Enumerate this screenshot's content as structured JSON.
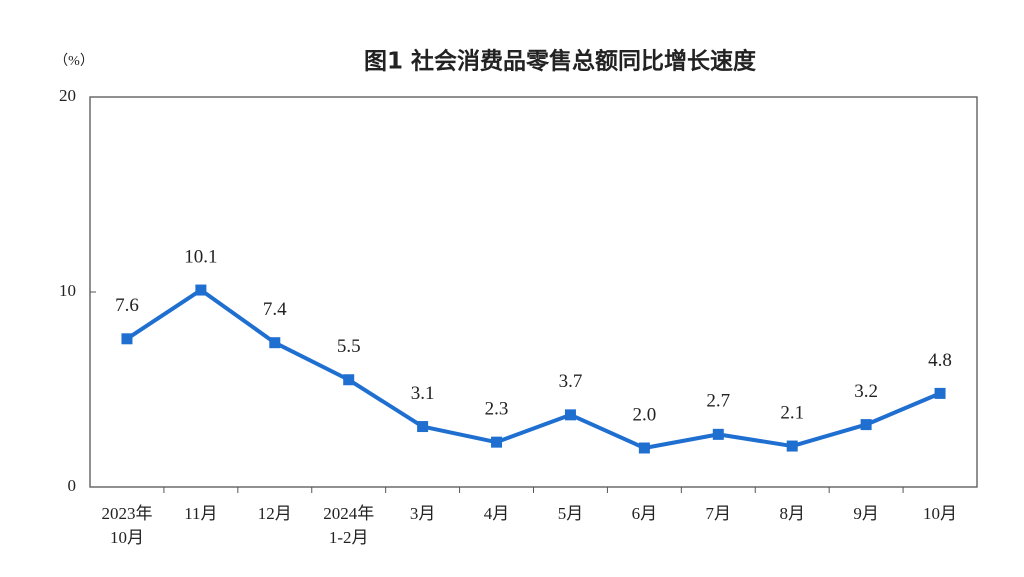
{
  "chart_data": {
    "type": "line",
    "title": "图1  社会消费品零售总额同比增长速度",
    "y_label": "（%）",
    "categories": [
      "2023年\n10月",
      "11月",
      "12月",
      "2024年\n1-2月",
      "3月",
      "4月",
      "5月",
      "6月",
      "7月",
      "8月",
      "9月",
      "10月"
    ],
    "values": [
      7.6,
      10.1,
      7.4,
      5.5,
      3.1,
      2.3,
      3.7,
      2.0,
      2.7,
      2.1,
      3.2,
      4.8
    ],
    "value_labels": [
      "7.6",
      "10.1",
      "7.4",
      "5.5",
      "3.1",
      "2.3",
      "3.7",
      "2.0",
      "2.7",
      "2.1",
      "3.2",
      "4.8"
    ],
    "color": "#1f6fd1",
    "ylim": [
      0,
      20
    ],
    "yticks": [
      0,
      10,
      20
    ]
  }
}
